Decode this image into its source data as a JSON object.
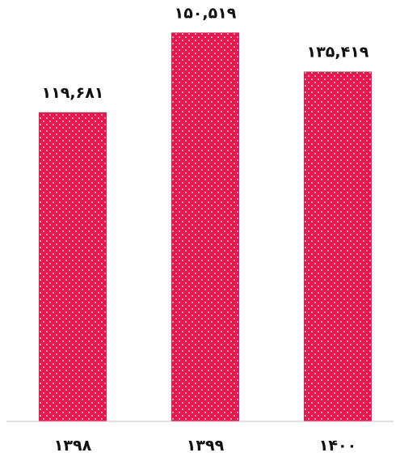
{
  "chart_data": {
    "type": "bar",
    "categories": [
      "۱۳۹۸",
      "۱۳۹۹",
      "۱۴۰۰"
    ],
    "values": [
      119681,
      150519,
      135419
    ],
    "value_labels": [
      "۱۱۹,۶۸۱",
      "۱۵۰,۵۱۹",
      "۱۳۵,۴۱۹"
    ],
    "ylim": [
      0,
      160000
    ],
    "grid": false,
    "legend": "none",
    "bar_color": "#e8174f",
    "bar_pattern": "white-dots",
    "baseline_color": "#bfbfbf"
  }
}
